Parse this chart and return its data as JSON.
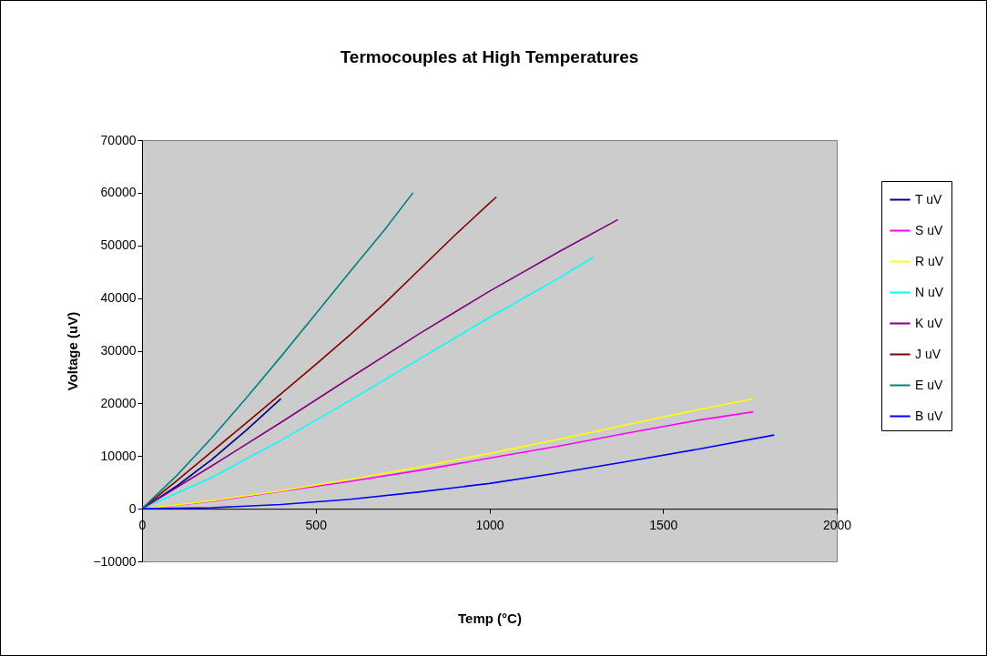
{
  "chart_data": {
    "type": "line",
    "title": "Termocouples at High Temperatures",
    "xlabel": "Temp (°C)",
    "ylabel": "Voltage (uV)",
    "xlim": [
      0,
      2000
    ],
    "xticks": [
      0,
      500,
      1000,
      1500,
      2000
    ],
    "ylim": [
      -10000,
      70000
    ],
    "yticks": [
      -10000,
      0,
      10000,
      20000,
      30000,
      40000,
      50000,
      60000,
      70000
    ],
    "legend": "right",
    "series": [
      {
        "name": "T uV",
        "color": "#000080",
        "x": [
          0,
          100,
          200,
          300,
          400
        ],
        "values": [
          0,
          4300,
          9300,
          14900,
          20900
        ]
      },
      {
        "name": "S uV",
        "color": "#ff00ff",
        "x": [
          0,
          200,
          400,
          600,
          800,
          1000,
          1200,
          1400,
          1600,
          1760
        ],
        "values": [
          0,
          1400,
          3300,
          5200,
          7300,
          9600,
          11900,
          14400,
          16800,
          18400
        ]
      },
      {
        "name": "R uV",
        "color": "#ffff00",
        "x": [
          0,
          200,
          400,
          600,
          800,
          1000,
          1200,
          1400,
          1600,
          1760
        ],
        "values": [
          0,
          1500,
          3400,
          5600,
          7900,
          10500,
          13200,
          16000,
          18800,
          20900
        ]
      },
      {
        "name": "N uV",
        "color": "#00ffff",
        "x": [
          0,
          200,
          400,
          600,
          800,
          1000,
          1200,
          1300
        ],
        "values": [
          0,
          5900,
          13000,
          20600,
          28500,
          36300,
          43800,
          47800
        ]
      },
      {
        "name": "K uV",
        "color": "#800080",
        "x": [
          0,
          200,
          400,
          600,
          800,
          1000,
          1200,
          1370
        ],
        "values": [
          0,
          8100,
          16400,
          24900,
          33300,
          41300,
          48800,
          54900
        ]
      },
      {
        "name": "J uV",
        "color": "#800000",
        "x": [
          0,
          100,
          200,
          300,
          400,
          500,
          600,
          700,
          800,
          900,
          1000,
          1020
        ],
        "values": [
          0,
          5300,
          10800,
          16300,
          21800,
          27400,
          33100,
          39100,
          45500,
          51900,
          58000,
          59200
        ]
      },
      {
        "name": "E uV",
        "color": "#008080",
        "x": [
          0,
          100,
          200,
          300,
          400,
          500,
          600,
          700,
          780
        ],
        "values": [
          0,
          6300,
          13400,
          21000,
          28900,
          37000,
          45100,
          53100,
          60000
        ]
      },
      {
        "name": "B uV",
        "color": "#0000ff",
        "x": [
          0,
          200,
          400,
          600,
          800,
          1000,
          1200,
          1400,
          1600,
          1820
        ],
        "values": [
          0,
          200,
          800,
          1800,
          3200,
          4800,
          6800,
          9000,
          11300,
          14000
        ]
      }
    ]
  }
}
